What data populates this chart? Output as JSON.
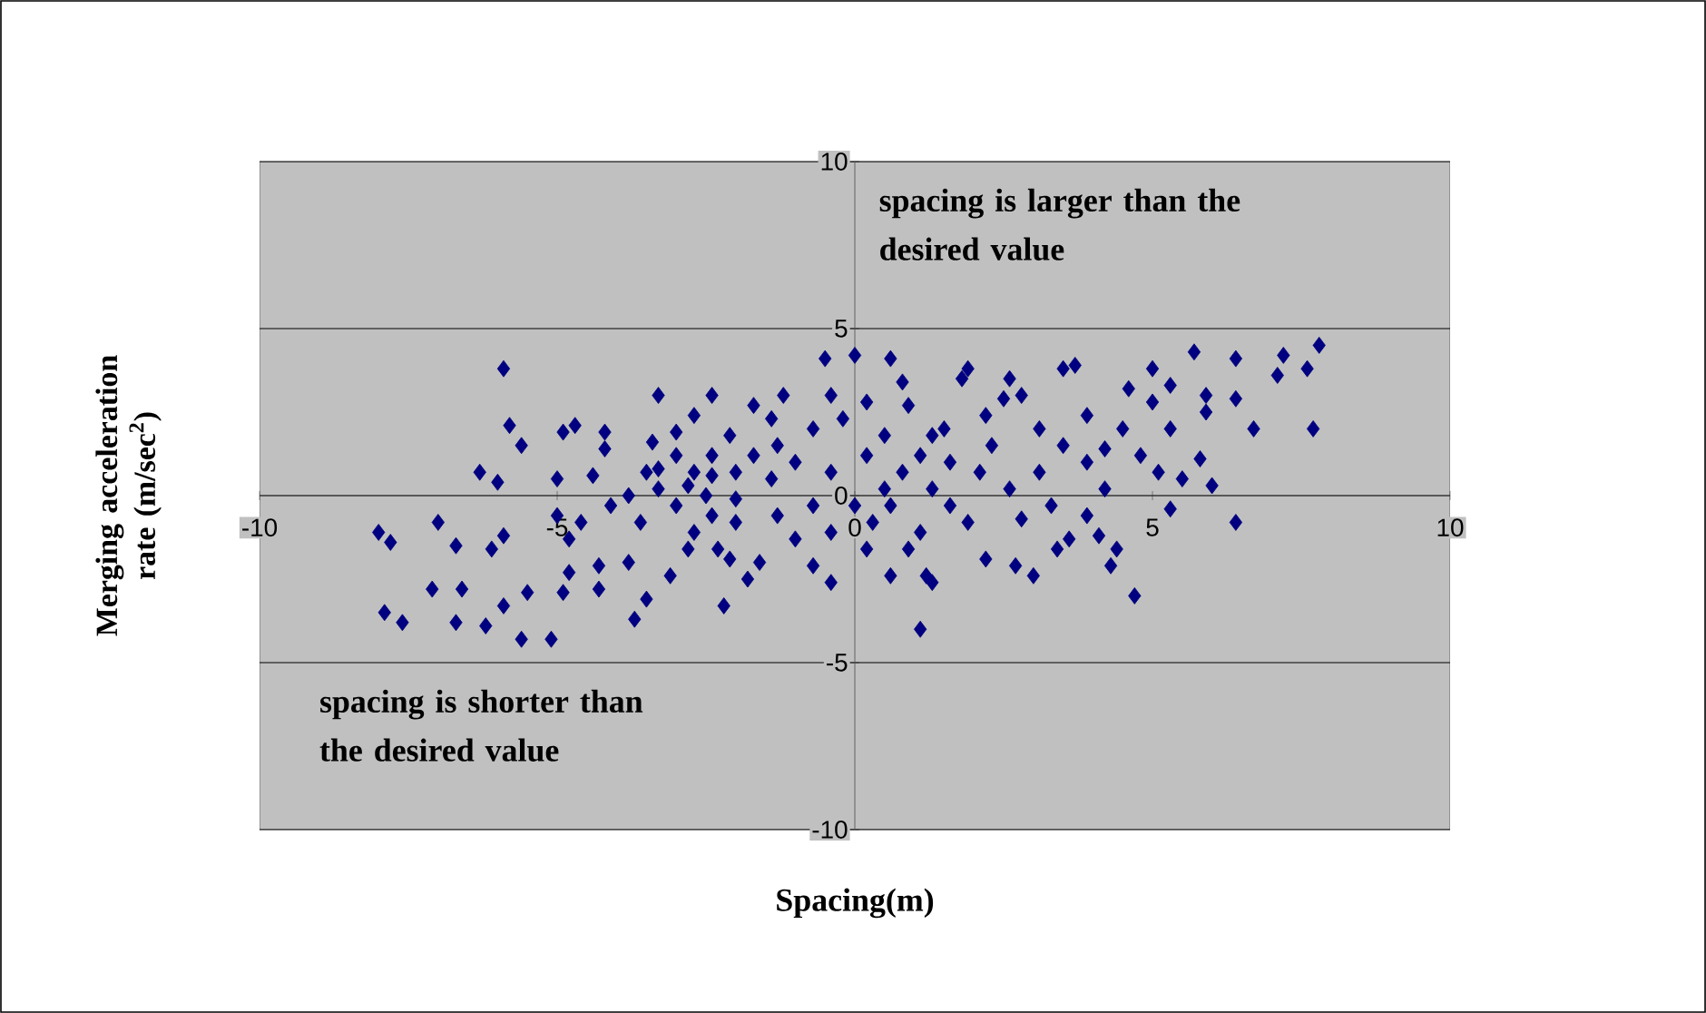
{
  "chart_data": {
    "type": "scatter",
    "xlabel": "Spacing(m)",
    "ylabel": "Merging acceleration rate (m/sec$^{2}$)",
    "annotations": [
      "spacing is larger than the desired value",
      "spacing is shorter than the desired value"
    ],
    "xlim": [
      -10,
      10
    ],
    "ylim": [
      -10,
      10
    ],
    "xticks": [
      -10,
      -5,
      0,
      5,
      10
    ],
    "yticks": [
      -10,
      -5,
      0,
      5,
      10
    ],
    "grid": "y",
    "marker": "diamond",
    "series": [
      {
        "color": "#000080",
        "x": [
          -8.0,
          -7.8,
          -7.0,
          -6.7,
          -6.1,
          -5.9,
          -7.1,
          -6.6,
          -7.9,
          -7.6,
          -6.7,
          -6.2,
          -5.9,
          -5.5,
          -5.6,
          -5.1,
          -4.9,
          -4.8,
          -4.3,
          -4.3,
          -3.8,
          -3.7,
          -3.5,
          -3.1,
          -2.2,
          -1.8,
          -5.9,
          -5.8,
          -5.6,
          -6.3,
          -6.0,
          -5.0,
          -4.9,
          -4.7,
          -4.2,
          -4.2,
          -4.4,
          -5.0,
          -4.8,
          -4.6,
          -4.1,
          -3.8,
          -3.6,
          -3.3,
          -2.4,
          -2.7,
          -3.0,
          -3.4,
          -3.3,
          -3.0,
          -2.7,
          -2.4,
          -2.1,
          -1.7,
          -1.2,
          -1.4,
          -2.0,
          -2.5,
          -3.0,
          -2.7,
          -2.3,
          -2.0,
          -1.6,
          -1.3,
          -1.4,
          -1.0,
          -0.7,
          -0.7,
          -1.0,
          -0.7,
          -0.4,
          -0.5,
          0.0,
          -0.4,
          -0.2,
          0.2,
          0.6,
          0.8,
          0.9,
          0.5,
          0.2,
          0.0,
          0.3,
          0.2,
          0.6,
          1.2,
          1.3,
          1.1,
          1.1,
          1.3,
          1.6,
          1.5,
          1.9,
          1.8,
          2.6,
          2.5,
          2.8,
          2.2,
          3.1,
          3.5,
          3.7,
          3.9,
          3.5,
          2.6,
          2.8,
          2.2,
          2.7,
          3.0,
          3.4,
          3.6,
          3.9,
          4.1,
          4.3,
          4.7,
          4.4,
          4.2,
          3.9,
          4.2,
          4.5,
          4.6,
          5.0,
          5.3,
          5.0,
          4.8,
          5.1,
          5.3,
          5.5,
          5.3,
          5.8,
          6.0,
          5.9,
          5.9,
          6.4,
          6.4,
          6.7,
          5.7,
          6.4,
          7.2,
          7.1,
          7.6,
          7.8,
          7.7,
          -3.3,
          -2.8,
          -2.4,
          -2.0,
          -1.7,
          -1.3,
          -0.4,
          0.5,
          0.8,
          1.1,
          1.6,
          1.9,
          2.1,
          2.3,
          0.6,
          0.9,
          -0.4,
          -2.1,
          -2.8,
          -2.4,
          -3.5,
          1.3,
          3.1,
          3.3
        ],
        "values": [
          -1.1,
          -1.4,
          -0.8,
          -1.5,
          -1.6,
          -1.2,
          -2.8,
          -2.8,
          -3.5,
          -3.8,
          -3.8,
          -3.9,
          -3.3,
          -2.9,
          -4.3,
          -4.3,
          -2.9,
          -2.3,
          -2.1,
          -2.8,
          -2.0,
          -3.7,
          -3.1,
          -2.4,
          -3.3,
          -2.5,
          3.8,
          2.1,
          1.5,
          0.7,
          0.4,
          0.5,
          1.9,
          2.1,
          1.9,
          1.4,
          0.6,
          -0.6,
          -1.3,
          -0.8,
          -0.3,
          0.0,
          -0.8,
          3.0,
          3.0,
          2.4,
          1.9,
          1.6,
          0.8,
          1.2,
          0.7,
          1.2,
          1.8,
          2.7,
          3.0,
          2.3,
          0.7,
          0.0,
          -0.3,
          -1.1,
          -1.6,
          -0.8,
          -2.0,
          -0.6,
          0.5,
          1.0,
          2.0,
          -0.3,
          -1.3,
          -2.1,
          -2.6,
          4.1,
          4.2,
          3.0,
          2.3,
          2.8,
          4.1,
          3.4,
          2.7,
          1.8,
          1.2,
          -0.3,
          -0.8,
          -1.6,
          -2.4,
          -2.4,
          -2.6,
          -4.0,
          -1.1,
          0.2,
          1.0,
          2.0,
          3.8,
          3.5,
          3.5,
          2.9,
          3.0,
          2.4,
          2.0,
          3.8,
          3.9,
          2.4,
          1.5,
          0.2,
          -0.7,
          -1.9,
          -2.1,
          -2.4,
          -1.6,
          -1.3,
          -0.6,
          -1.2,
          -2.1,
          -3.0,
          -1.6,
          0.2,
          1.0,
          1.4,
          2.0,
          3.2,
          3.8,
          3.3,
          2.8,
          1.2,
          0.7,
          2.0,
          0.5,
          -0.4,
          1.1,
          0.3,
          3.0,
          2.5,
          2.9,
          -0.8,
          2.0,
          4.3,
          4.1,
          4.2,
          3.6,
          3.8,
          4.5,
          2.0,
          0.2,
          0.3,
          0.6,
          -0.1,
          1.2,
          1.5,
          0.7,
          0.2,
          0.7,
          1.2,
          -0.3,
          -0.8,
          0.7,
          1.5,
          -0.3,
          -1.6,
          -1.1,
          -1.9,
          -1.6,
          -0.6,
          0.7,
          1.8,
          0.7,
          -0.3
        ]
      }
    ]
  }
}
